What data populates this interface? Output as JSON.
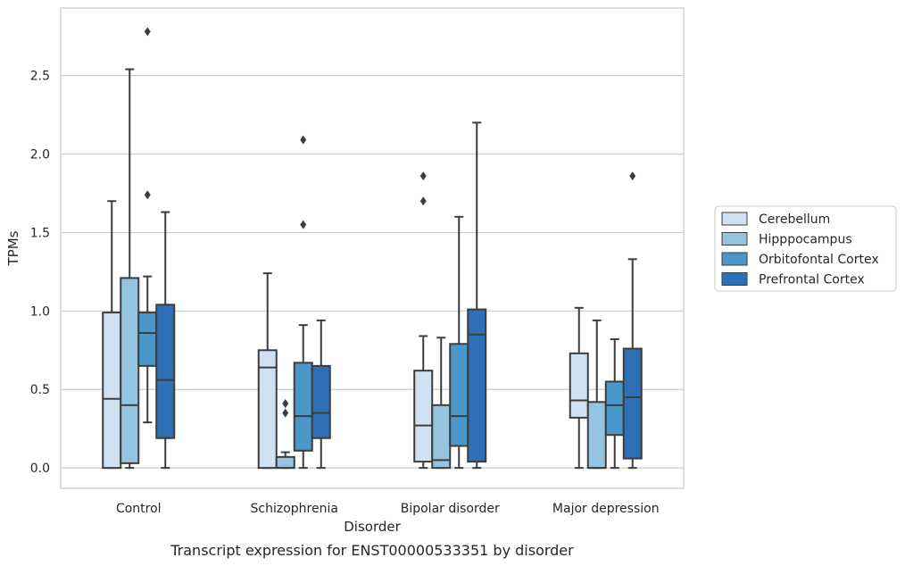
{
  "chart_data": {
    "type": "box",
    "ylabel": "TPMs",
    "xlabel": "Disorder",
    "caption": "Transcript expression for ENST00000533351 by disorder",
    "categories": [
      "Control",
      "Schizophrenia",
      "Bipolar disorder",
      "Major depression"
    ],
    "ylim": [
      -0.13,
      2.93
    ],
    "yticks": [
      0.0,
      0.5,
      1.0,
      1.5,
      2.0,
      2.5
    ],
    "ytick_labels": [
      "0.0",
      "0.5",
      "1.0",
      "1.5",
      "2.0",
      "2.5"
    ],
    "grid": "horizontal",
    "legend_position": "right",
    "series": [
      {
        "name": "Cerebellum",
        "color": "#d0e1f2",
        "boxes": [
          {
            "min": 0.0,
            "q1": 0.0,
            "median": 0.44,
            "q3": 0.99,
            "max": 1.7,
            "outliers": []
          },
          {
            "min": 0.0,
            "q1": 0.0,
            "median": 0.64,
            "q3": 0.75,
            "max": 1.24,
            "outliers": []
          },
          {
            "min": 0.0,
            "q1": 0.04,
            "median": 0.27,
            "q3": 0.62,
            "max": 0.84,
            "outliers": [
              1.7,
              1.86
            ]
          },
          {
            "min": 0.0,
            "q1": 0.32,
            "median": 0.43,
            "q3": 0.73,
            "max": 1.02,
            "outliers": []
          }
        ]
      },
      {
        "name": "Hipppocampus",
        "color": "#94c4df",
        "boxes": [
          {
            "min": 0.0,
            "q1": 0.03,
            "median": 0.4,
            "q3": 1.21,
            "max": 2.54,
            "outliers": []
          },
          {
            "min": 0.0,
            "q1": 0.0,
            "median": 0.0,
            "q3": 0.07,
            "max": 0.1,
            "outliers": [
              0.35,
              0.41
            ]
          },
          {
            "min": 0.0,
            "q1": 0.0,
            "median": 0.05,
            "q3": 0.4,
            "max": 0.83,
            "outliers": []
          },
          {
            "min": 0.0,
            "q1": 0.0,
            "median": 0.0,
            "q3": 0.42,
            "max": 0.94,
            "outliers": []
          }
        ]
      },
      {
        "name": "Orbitofontal Cortex",
        "color": "#4a98c9",
        "boxes": [
          {
            "min": 0.29,
            "q1": 0.65,
            "median": 0.86,
            "q3": 0.99,
            "max": 1.22,
            "outliers": [
              1.74,
              2.78
            ]
          },
          {
            "min": 0.0,
            "q1": 0.11,
            "median": 0.33,
            "q3": 0.67,
            "max": 0.91,
            "outliers": [
              1.55,
              2.09
            ]
          },
          {
            "min": 0.0,
            "q1": 0.14,
            "median": 0.33,
            "q3": 0.79,
            "max": 1.6,
            "outliers": []
          },
          {
            "min": 0.0,
            "q1": 0.21,
            "median": 0.4,
            "q3": 0.55,
            "max": 0.82,
            "outliers": []
          }
        ]
      },
      {
        "name": "Prefrontal Cortex",
        "color": "#2e6fb5",
        "boxes": [
          {
            "min": 0.0,
            "q1": 0.19,
            "median": 0.56,
            "q3": 1.04,
            "max": 1.63,
            "outliers": []
          },
          {
            "min": 0.0,
            "q1": 0.19,
            "median": 0.35,
            "q3": 0.65,
            "max": 0.94,
            "outliers": []
          },
          {
            "min": 0.0,
            "q1": 0.04,
            "median": 0.85,
            "q3": 1.01,
            "max": 2.2,
            "outliers": []
          },
          {
            "min": 0.0,
            "q1": 0.06,
            "median": 0.45,
            "q3": 0.76,
            "max": 1.33,
            "outliers": [
              1.86
            ]
          }
        ]
      }
    ]
  }
}
